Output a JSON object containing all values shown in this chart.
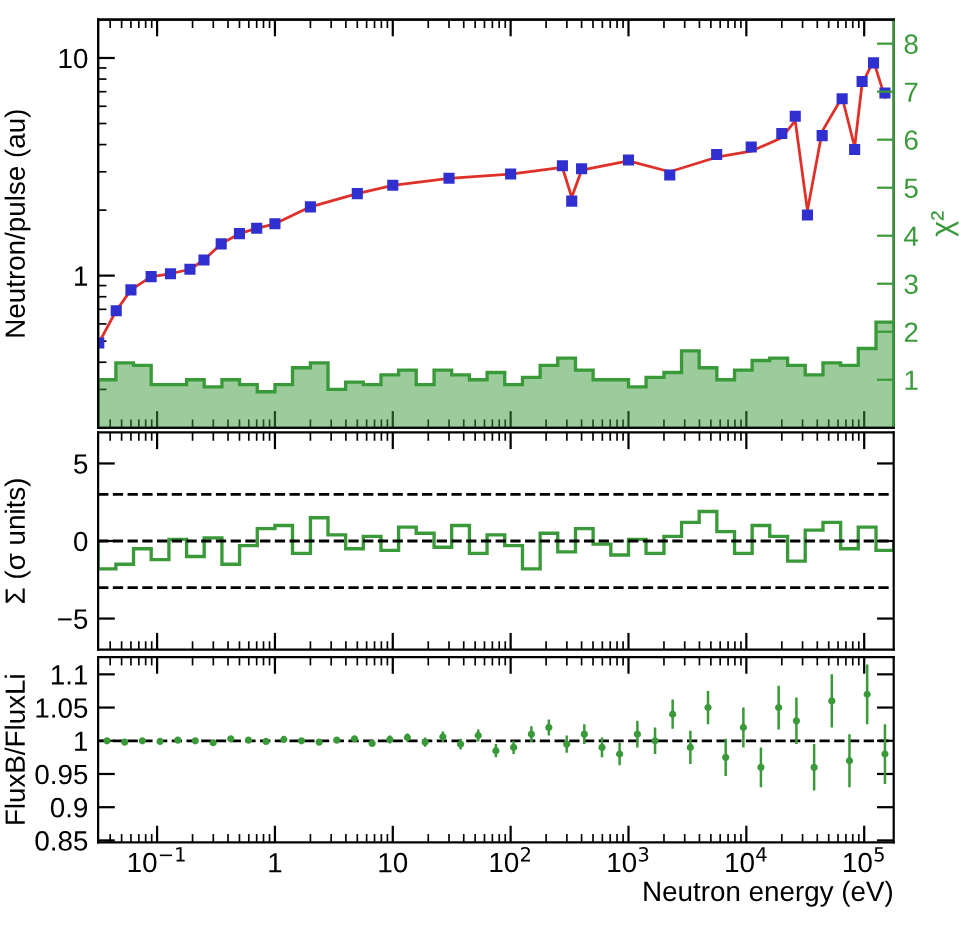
{
  "chart_data": [
    {
      "type": "line",
      "ylabel": "Neutron/pulse (au)",
      "y2label": "χ²",
      "log": "xy",
      "xlim": [
        0.0316,
        178000
      ],
      "xticks": [
        {
          "value": 0.1,
          "label": null
        },
        {
          "value": 1,
          "label": null
        },
        {
          "value": 10,
          "label": null
        },
        {
          "value": 100,
          "label": null
        },
        {
          "value": 1000,
          "label": null
        },
        {
          "value": 10000,
          "label": null
        },
        {
          "value": 100000,
          "label": null
        }
      ],
      "ylim": [
        0.2,
        15
      ],
      "yticks": [
        1,
        10
      ],
      "y2lim": [
        0,
        8.5
      ],
      "y2ticks": [
        1,
        2,
        3,
        4,
        5,
        6,
        7,
        8
      ],
      "tick_labels": "y",
      "series": [
        {
          "type": "histogram",
          "axis": "y2",
          "color": "#3a9a3a",
          "bins": [
            0.0316,
            0.0447,
            0.0631,
            0.0891,
            0.126,
            0.178,
            0.251,
            0.355,
            0.501,
            0.708,
            1,
            1.41,
            2.0,
            2.82,
            3.98,
            5.62,
            7.94,
            11.2,
            15.8,
            22.4,
            31.6,
            44.7,
            63.1,
            89.1,
            126,
            178,
            251,
            355,
            501,
            708,
            1000,
            1410,
            2000,
            2820,
            3980,
            5620,
            7940,
            11200,
            15800,
            22400,
            31600,
            44700,
            63100,
            89100,
            126000,
            178000
          ],
          "values": [
            1.0,
            1.35,
            1.3,
            0.9,
            0.9,
            1.0,
            0.85,
            1.0,
            0.9,
            0.75,
            0.9,
            1.25,
            1.35,
            0.8,
            0.95,
            0.9,
            1.1,
            1.2,
            0.9,
            1.2,
            1.1,
            1.0,
            1.15,
            0.9,
            1.05,
            1.3,
            1.45,
            1.2,
            1.0,
            1.0,
            0.85,
            1.05,
            1.15,
            1.6,
            1.25,
            1.0,
            1.2,
            1.4,
            1.45,
            1.3,
            1.1,
            1.35,
            1.3,
            1.65,
            2.2
          ]
        },
        {
          "type": "scatter",
          "marker": "square",
          "color": "#3030d0",
          "x": [
            0.032,
            0.045,
            0.06,
            0.089,
            0.13,
            0.19,
            0.25,
            0.35,
            0.5,
            0.7,
            1,
            2,
            5,
            10,
            30,
            100,
            275,
            330,
            400,
            1000,
            2240,
            5600,
            11000,
            20000,
            26000,
            33000,
            44000,
            65000,
            83000,
            96000,
            120000,
            150000
          ],
          "values": [
            0.49,
            0.69,
            0.86,
            0.99,
            1.02,
            1.07,
            1.18,
            1.4,
            1.56,
            1.65,
            1.73,
            2.07,
            2.38,
            2.6,
            2.8,
            2.93,
            3.2,
            2.2,
            3.1,
            3.4,
            2.9,
            3.6,
            3.9,
            4.5,
            5.4,
            1.9,
            4.4,
            6.5,
            3.8,
            7.8,
            9.5,
            6.9
          ]
        },
        {
          "type": "line",
          "line_style": "solid",
          "color": "#e0302a",
          "x": [
            0.032,
            0.045,
            0.06,
            0.089,
            0.13,
            0.19,
            0.25,
            0.35,
            0.5,
            0.7,
            1,
            2,
            5,
            10,
            30,
            100,
            275,
            330,
            400,
            1000,
            2240,
            5600,
            11000,
            20000,
            26000,
            33000,
            44000,
            65000,
            83000,
            96000,
            120000,
            150000
          ],
          "values": [
            0.49,
            0.69,
            0.86,
            0.99,
            1.02,
            1.07,
            1.18,
            1.4,
            1.56,
            1.65,
            1.73,
            2.07,
            2.38,
            2.6,
            2.8,
            2.93,
            3.14,
            2.29,
            3.05,
            3.37,
            3.0,
            3.5,
            3.73,
            4.3,
            5.15,
            1.99,
            4.6,
            6.6,
            3.9,
            7.6,
            9.7,
            6.6
          ]
        }
      ]
    },
    {
      "type": "histogram",
      "ylabel": "Σ (σ units)",
      "log": "x",
      "color": "#3a9a3a",
      "xlim": [
        0.0316,
        178000
      ],
      "xticks": [
        {
          "value": 0.1,
          "label": null
        },
        {
          "value": 1,
          "label": null
        },
        {
          "value": 10,
          "label": null
        },
        {
          "value": 100,
          "label": null
        },
        {
          "value": 1000,
          "label": null
        },
        {
          "value": 10000,
          "label": null
        },
        {
          "value": 100000,
          "label": null
        }
      ],
      "ylim": [
        -7,
        7
      ],
      "yticks": [
        {
          "value": -5,
          "label": "−5"
        },
        0,
        5
      ],
      "tick_labels": "y",
      "bins": [
        0.0316,
        0.0447,
        0.0631,
        0.0891,
        0.126,
        0.178,
        0.251,
        0.355,
        0.501,
        0.708,
        1,
        1.41,
        2.0,
        2.82,
        3.98,
        5.62,
        7.94,
        11.2,
        15.8,
        22.4,
        31.6,
        44.7,
        63.1,
        89.1,
        126,
        178,
        251,
        355,
        501,
        708,
        1000,
        1410,
        2000,
        2820,
        3980,
        5620,
        7940,
        11200,
        15800,
        22400,
        31600,
        44700,
        63100,
        89100,
        126000,
        178000
      ],
      "values": [
        -1.8,
        -1.5,
        -0.5,
        -1.2,
        0.1,
        -1.0,
        0.2,
        -1.5,
        -0.3,
        0.8,
        1.0,
        -0.8,
        1.5,
        0.4,
        -0.5,
        0.3,
        -0.6,
        0.9,
        0.5,
        -0.4,
        1.0,
        -0.8,
        0.4,
        -0.3,
        -1.8,
        0.5,
        -0.7,
        0.8,
        -0.2,
        -0.9,
        0.1,
        -0.8,
        0.3,
        1.2,
        1.9,
        0.6,
        -0.8,
        1.0,
        0.3,
        -1.3,
        0.7,
        1.2,
        -0.5,
        0.9,
        -0.6
      ],
      "ref_lines": [
        {
          "axis": "y",
          "value": 3,
          "line_style": "dashed",
          "color": "#000000"
        },
        {
          "axis": "y",
          "value": 0,
          "line_style": "dashed",
          "color": "#000000"
        },
        {
          "axis": "y",
          "value": -3,
          "line_style": "dashed",
          "color": "#000000"
        }
      ]
    },
    {
      "type": "scatter",
      "ylabel": "FluxB/FluxLi",
      "xlabel": "Neutron energy (eV)",
      "log": "x",
      "color": "#3a9a3a",
      "marker": "circle",
      "xlim": [
        0.0316,
        178000
      ],
      "xticks": [
        {
          "value": 0.1,
          "label": "10$^{−1}$"
        },
        1,
        10,
        {
          "value": 100,
          "label": "10$^{2}$"
        },
        {
          "value": 1000,
          "label": "10$^{3}$"
        },
        {
          "value": 10000,
          "label": "10$^{4}$"
        },
        {
          "value": 100000,
          "label": "10$^{5}$"
        }
      ],
      "ylim": [
        0.847,
        1.126
      ],
      "yticks": [
        0.85,
        0.9,
        0.95,
        1,
        1.05,
        1.1
      ],
      "x": [
        0.0376,
        0.0531,
        0.075,
        0.106,
        0.15,
        0.211,
        0.299,
        0.422,
        0.596,
        0.841,
        1.19,
        1.68,
        2.37,
        3.35,
        4.73,
        6.68,
        9.44,
        13.3,
        18.8,
        26.6,
        37.6,
        53.1,
        75,
        106,
        150,
        211,
        299,
        422,
        596,
        841,
        1190,
        1680,
        2370,
        3350,
        4730,
        6680,
        9440,
        13300,
        18800,
        26600,
        37600,
        53100,
        75000,
        106000,
        150000
      ],
      "values": [
        1.0,
        0.998,
        1.0,
        0.999,
        1.001,
        1.0,
        0.997,
        1.003,
        1.001,
        0.999,
        1.002,
        1.0,
        0.998,
        1.001,
        1.003,
        0.996,
        1.002,
        1.005,
        0.998,
        1.006,
        0.995,
        1.008,
        0.985,
        0.99,
        1.01,
        1.02,
        0.995,
        1.01,
        0.99,
        0.98,
        1.01,
        1.0,
        1.04,
        0.99,
        1.05,
        0.975,
        1.02,
        0.96,
        1.05,
        1.03,
        0.96,
        1.06,
        0.97,
        1.07,
        0.98
      ],
      "errors": [
        0.003,
        0.003,
        0.003,
        0.003,
        0.003,
        0.003,
        0.003,
        0.003,
        0.003,
        0.003,
        0.004,
        0.004,
        0.004,
        0.004,
        0.004,
        0.005,
        0.006,
        0.006,
        0.007,
        0.008,
        0.008,
        0.009,
        0.01,
        0.01,
        0.012,
        0.012,
        0.013,
        0.015,
        0.015,
        0.017,
        0.02,
        0.02,
        0.022,
        0.025,
        0.025,
        0.028,
        0.03,
        0.03,
        0.033,
        0.035,
        0.035,
        0.04,
        0.04,
        0.045,
        0.045
      ],
      "ref_lines": [
        {
          "axis": "y",
          "value": 1,
          "line_style": "dashed",
          "color": "#000000"
        }
      ]
    }
  ]
}
